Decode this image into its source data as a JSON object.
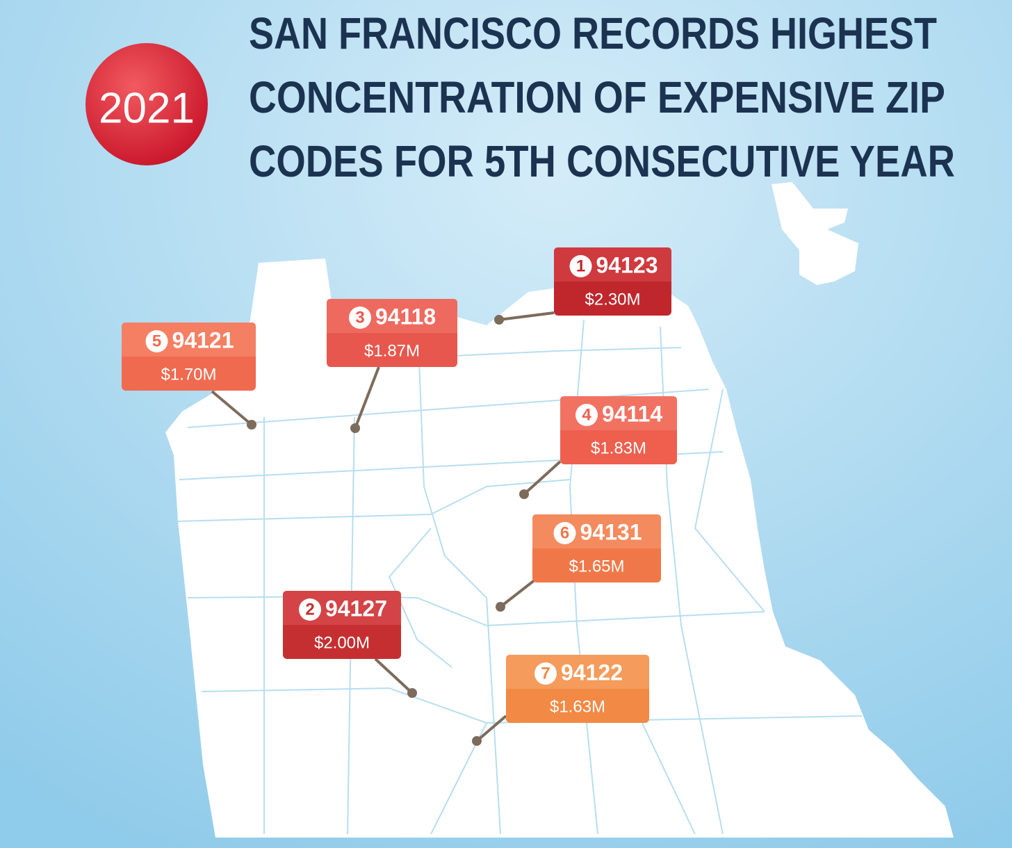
{
  "header": {
    "year": "2021",
    "title_lines": [
      "SAN FRANCISCO RECORDS HIGHEST",
      "CONCENTRATION OF EXPENSIVE ZIP",
      "CODES FOR 5TH CONSECUTIVE YEAR"
    ]
  },
  "labels": [
    {
      "rank": "1",
      "zip": "94123",
      "price": "$2.30M"
    },
    {
      "rank": "3",
      "zip": "94118",
      "price": "$1.87M"
    },
    {
      "rank": "5",
      "zip": "94121",
      "price": "$1.70M"
    },
    {
      "rank": "4",
      "zip": "94114",
      "price": "$1.83M"
    },
    {
      "rank": "6",
      "zip": "94131",
      "price": "$1.65M"
    },
    {
      "rank": "2",
      "zip": "94127",
      "price": "$2.00M"
    },
    {
      "rank": "7",
      "zip": "94122",
      "price": "$1.63M"
    }
  ]
}
